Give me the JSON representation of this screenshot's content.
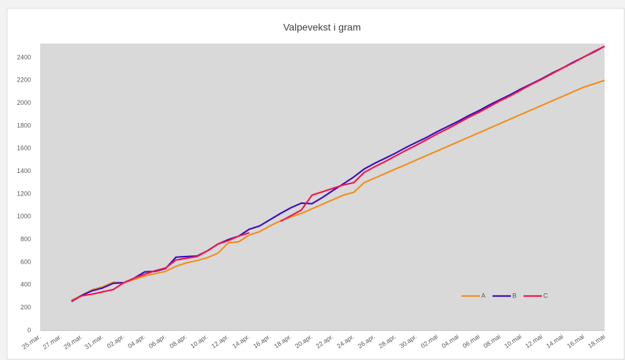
{
  "chart_data": {
    "type": "line",
    "title": "Valpevekst i gram",
    "categories": [
      "25.mar.",
      null,
      "27.mar.",
      null,
      "29.mar.",
      null,
      "31.mar.",
      null,
      "02.apr.",
      null,
      "04.apr.",
      null,
      "06.apr.",
      null,
      "08.apr.",
      null,
      "10.apr.",
      null,
      "12.apr.",
      null,
      "14.apr.",
      null,
      "16.apr.",
      null,
      "18.apr.",
      null,
      "20.apr.",
      null,
      "22.apr.",
      null,
      "24.apr.",
      null,
      "26.apr.",
      null,
      "28.apr.",
      null,
      "30.apr.",
      null,
      "02.mai",
      null,
      "04.mai",
      null,
      "06.mai",
      null,
      "08.mai",
      null,
      "10.mai",
      null,
      "12.mai",
      null,
      "14.mai",
      null,
      "16.mai",
      null,
      "18.mai"
    ],
    "series": [
      {
        "name": "A",
        "color": "#f28e1c",
        "values": [
          null,
          null,
          null,
          265,
          310,
          360,
          385,
          425,
          420,
          450,
          480,
          500,
          520,
          565,
          595,
          615,
          640,
          680,
          770,
          780,
          840,
          870,
          920,
          965,
          1000,
          1030,
          1070,
          1110,
          1150,
          1190,
          1215,
          1300,
          1340,
          1380,
          1420,
          1460,
          1500,
          1540,
          1580,
          1620,
          1660,
          1700,
          1740,
          1780,
          1820,
          1860,
          1900,
          1940,
          1980,
          2020,
          2060,
          2100,
          2140,
          2170,
          2200
        ]
      },
      {
        "name": "B",
        "color": "#3a0fbf",
        "values": [
          null,
          null,
          null,
          255,
          310,
          350,
          375,
          415,
          420,
          460,
          515,
          520,
          545,
          645,
          650,
          655,
          700,
          760,
          800,
          830,
          890,
          920,
          975,
          1030,
          1080,
          1120,
          1115,
          1170,
          1230,
          1290,
          1350,
          1420,
          1470,
          1515,
          1560,
          1610,
          1655,
          1700,
          1750,
          1795,
          1840,
          1890,
          1935,
          1985,
          2030,
          2075,
          2125,
          2170,
          2215,
          2265,
          2310,
          2360,
          2405,
          2450,
          2500
        ]
      },
      {
        "name": "C",
        "color": "#f0174f",
        "values": [
          null,
          null,
          null,
          260,
          305,
          320,
          340,
          360,
          420,
          460,
          495,
          525,
          550,
          620,
          635,
          650,
          700,
          760,
          790,
          830,
          860,
          null,
          null,
          960,
          1010,
          1060,
          1190,
          1220,
          1250,
          1280,
          1300,
          1390,
          1440,
          1485,
          1535,
          1585,
          1630,
          1680,
          1730,
          1775,
          1825,
          1875,
          1920,
          1970,
          2020,
          2065,
          2115,
          2165,
          2210,
          2260,
          2310,
          2355,
          2405,
          2455,
          2500
        ]
      }
    ],
    "ylim": [
      0,
      2400
    ],
    "yticks": [
      0,
      200,
      400,
      600,
      800,
      1000,
      1200,
      1400,
      1600,
      1800,
      2000,
      2200,
      2400
    ],
    "grid": false,
    "legend": "lower-right"
  }
}
